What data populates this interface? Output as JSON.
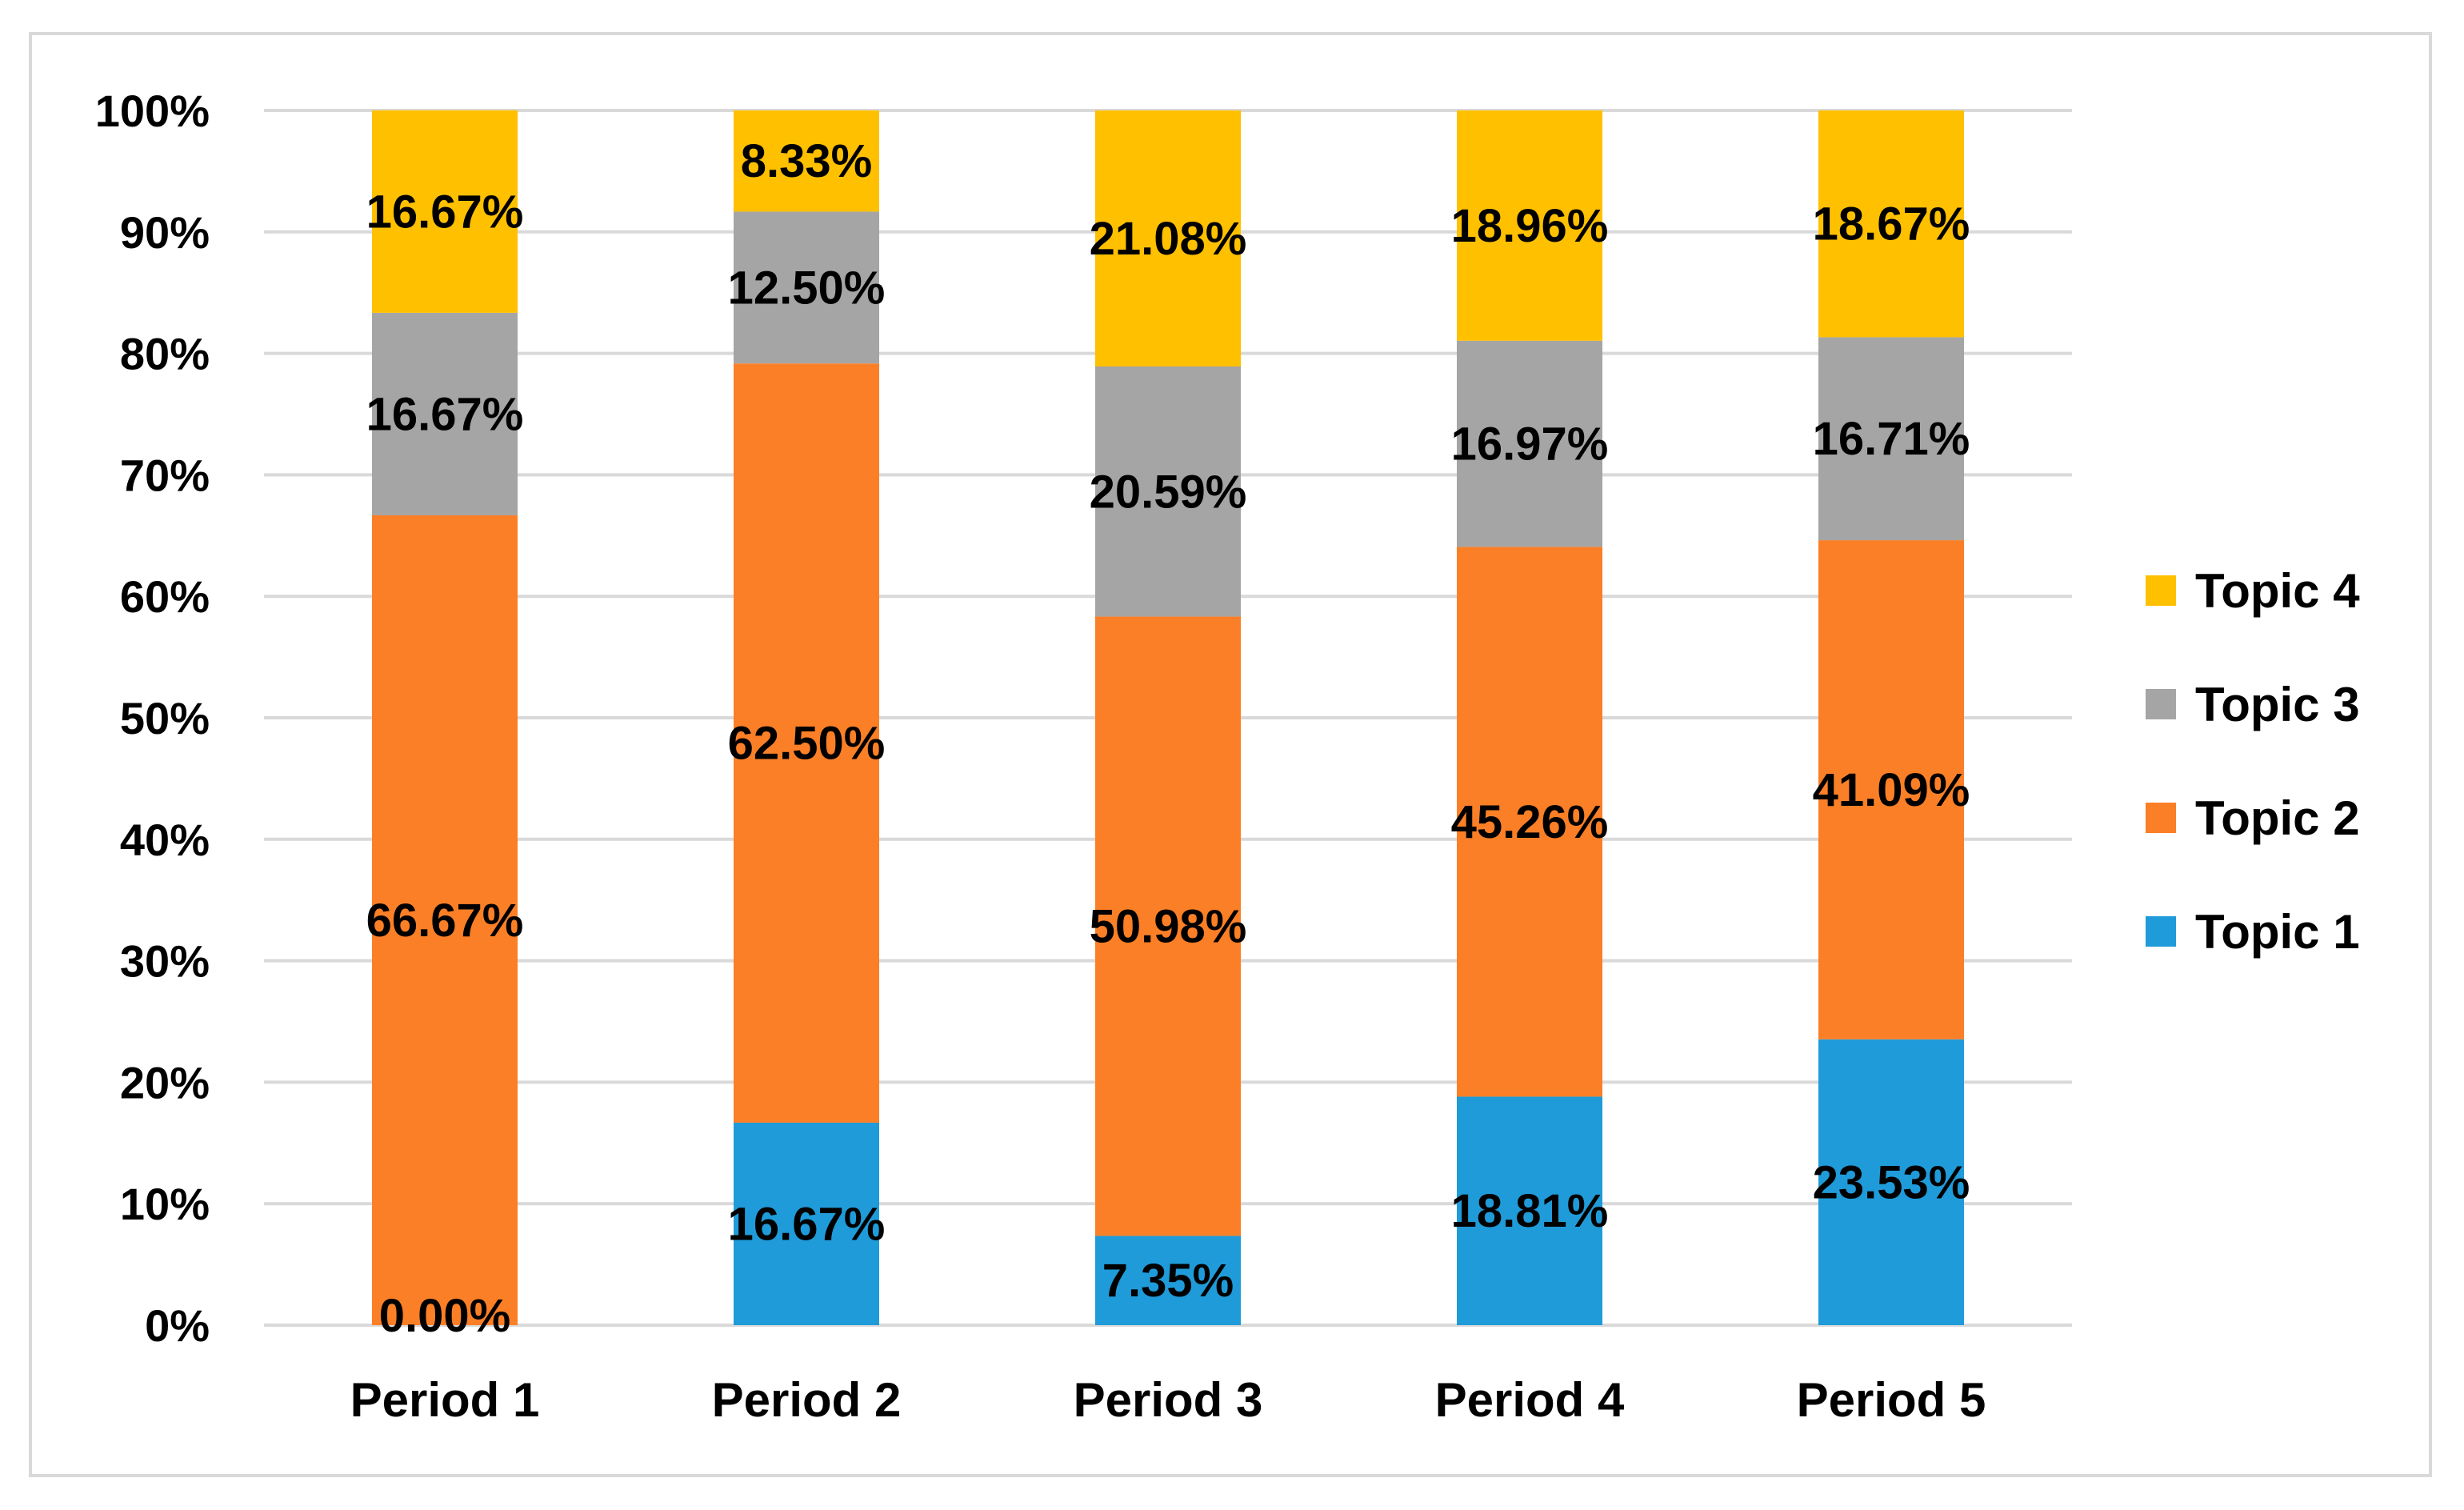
{
  "chart_data": {
    "type": "bar",
    "stacked": true,
    "percent_stacked": true,
    "title": "",
    "xlabel": "",
    "ylabel": "",
    "ylim": [
      0,
      100
    ],
    "y_ticks": [
      0,
      10,
      20,
      30,
      40,
      50,
      60,
      70,
      80,
      90,
      100
    ],
    "y_tick_labels": [
      "0%",
      "10%",
      "20%",
      "30%",
      "40%",
      "50%",
      "60%",
      "70%",
      "80%",
      "90%",
      "100%"
    ],
    "grid": true,
    "legend_position": "right",
    "categories": [
      "Period 1",
      "Period 2",
      "Period 3",
      "Period 4",
      "Period 5"
    ],
    "series": [
      {
        "name": "Topic 1",
        "color": "#1f9bd9",
        "values": [
          0.0,
          16.67,
          7.35,
          18.81,
          23.53
        ],
        "labels": [
          "0.00%",
          "16.67%",
          "7.35%",
          "18.81%",
          "23.53%"
        ]
      },
      {
        "name": "Topic 2",
        "color": "#fb7f26",
        "values": [
          66.67,
          62.5,
          50.98,
          45.26,
          41.09
        ],
        "labels": [
          "66.67%",
          "62.50%",
          "50.98%",
          "45.26%",
          "41.09%"
        ]
      },
      {
        "name": "Topic 3",
        "color": "#a5a5a5",
        "values": [
          16.67,
          12.5,
          20.59,
          16.97,
          16.71
        ],
        "labels": [
          "16.67%",
          "12.50%",
          "20.59%",
          "16.97%",
          "16.71%"
        ]
      },
      {
        "name": "Topic 4",
        "color": "#ffc000",
        "values": [
          16.67,
          8.33,
          21.08,
          18.96,
          18.67
        ],
        "labels": [
          "16.67%",
          "8.33%",
          "21.08%",
          "18.96%",
          "18.67%"
        ]
      }
    ],
    "legend_order": [
      "Topic 4",
      "Topic 3",
      "Topic 2",
      "Topic 1"
    ],
    "gridline_color": "#d9d9d9"
  }
}
